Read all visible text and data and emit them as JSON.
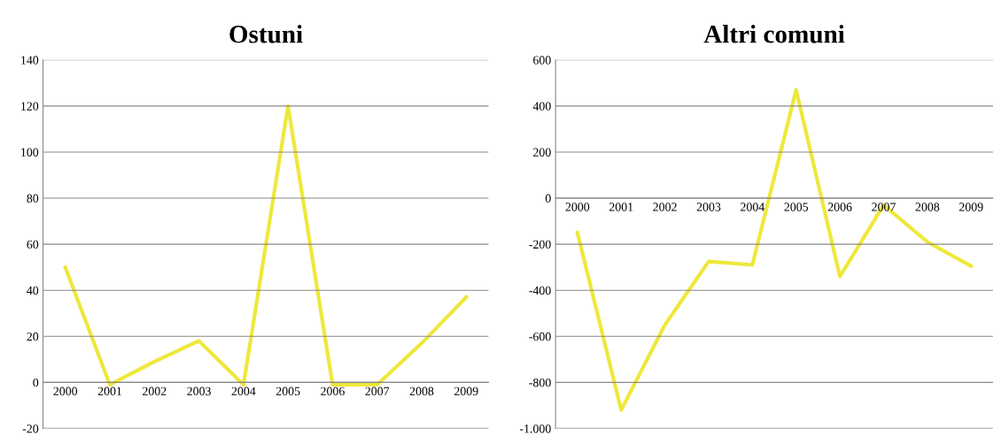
{
  "chart_data": [
    {
      "type": "line",
      "title": "Ostuni",
      "categories": [
        "2000",
        "2001",
        "2002",
        "2003",
        "2004",
        "2005",
        "2006",
        "2007",
        "2008",
        "2009"
      ],
      "series": [
        {
          "color": "#eee83c",
          "values": [
            50,
            -1,
            9,
            18,
            -1,
            120,
            -1,
            -1,
            17,
            37
          ]
        }
      ],
      "ylim": [
        -20,
        140
      ],
      "yticks": [
        -20,
        0,
        20,
        40,
        60,
        80,
        100,
        120,
        140
      ],
      "grid": "y",
      "legend": false,
      "marker": "none",
      "line_style": "solid"
    },
    {
      "type": "line",
      "title": "Altri comuni",
      "categories": [
        "2000",
        "2001",
        "2002",
        "2003",
        "2004",
        "2005",
        "2006",
        "2007",
        "2008",
        "2009"
      ],
      "series": [
        {
          "color": "#eee83c",
          "values": [
            -150,
            -920,
            -550,
            -275,
            -290,
            470,
            -340,
            -30,
            -190,
            -295
          ]
        }
      ],
      "ylim": [
        -1000,
        600
      ],
      "yticks": [
        {
          "value": -1000,
          "label": "-1.000"
        },
        -800,
        -600,
        -400,
        -200,
        0,
        200,
        400,
        600
      ],
      "grid": "y",
      "legend": false,
      "marker": "none",
      "line_style": "solid"
    }
  ]
}
